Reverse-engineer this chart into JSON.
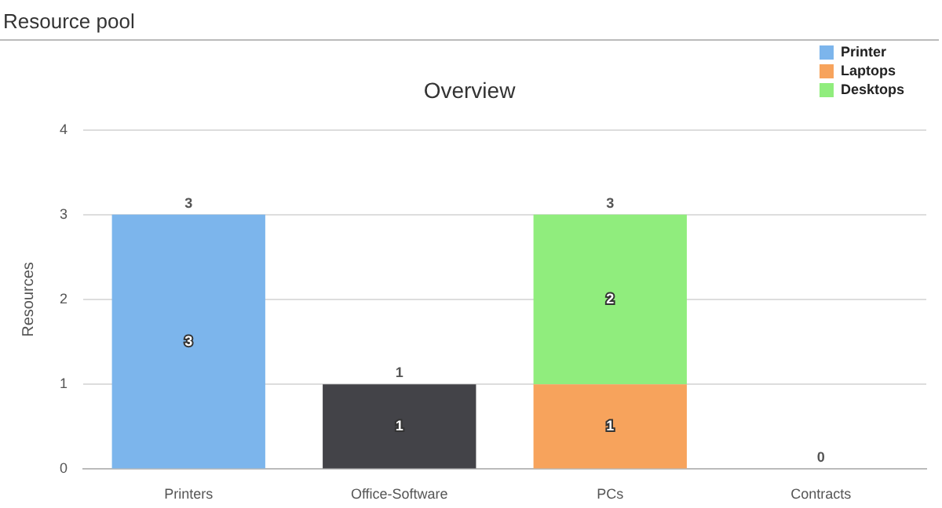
{
  "chart_data": {
    "type": "bar",
    "title": "Overview",
    "subtitle": "Resource pool",
    "ylabel": "Resources",
    "categories": [
      "Printers",
      "Office-Software",
      "PCs",
      "Contracts"
    ],
    "series": [
      {
        "name": "Printer",
        "color": "#7cb5ec",
        "values": [
          3,
          null,
          null,
          null
        ]
      },
      {
        "color": "#434348",
        "values": [
          null,
          1,
          null,
          null
        ]
      },
      {
        "name": "Laptops",
        "color": "#f7a35c",
        "values": [
          null,
          null,
          1,
          null
        ]
      },
      {
        "name": "Desktops",
        "color": "#90ed7d",
        "values": [
          null,
          null,
          2,
          null
        ]
      }
    ],
    "stacked": true,
    "ylim": [
      0,
      4
    ],
    "yticks": [
      0,
      1,
      2,
      3,
      4
    ],
    "grid": "y",
    "legend": "top right",
    "data_labels": true,
    "totals": [
      "3",
      "1",
      "3",
      "0"
    ]
  }
}
